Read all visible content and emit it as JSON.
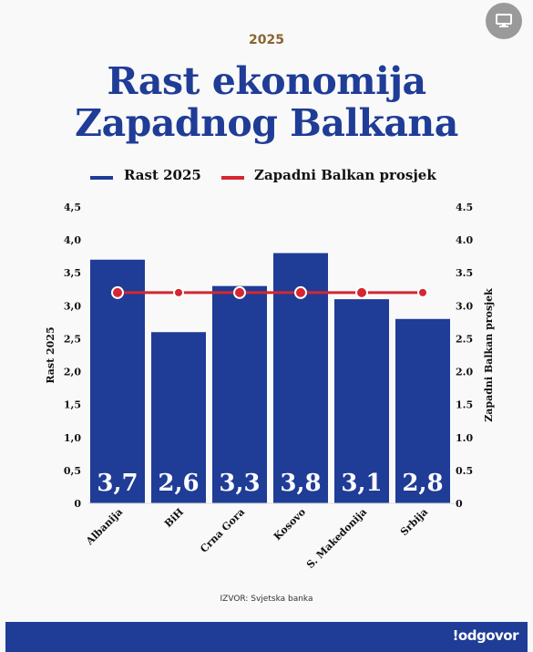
{
  "header": {
    "year": "2025",
    "title_line1": "Rast ekonomija",
    "title_line2": "Zapadnog Balkana"
  },
  "legend": {
    "bars_label": "Rast 2025",
    "line_label": "Zapadni Balkan prosjek"
  },
  "colors": {
    "bar": "#1f3c96",
    "line": "#d42731",
    "title": "#1f3c96",
    "year": "#8a6430"
  },
  "source": "IZVOR: Svjetska banka",
  "brand": "!odgovor",
  "icons": {
    "top_right": "monitor-icon"
  },
  "chart_data": {
    "type": "bar",
    "categories": [
      "Albanija",
      "BiH",
      "Crna Gora",
      "Kosovo",
      "S. Makedonija",
      "Srbija"
    ],
    "series": [
      {
        "name": "Rast 2025",
        "type": "bar",
        "values": [
          3.7,
          2.6,
          3.3,
          3.8,
          3.1,
          2.8
        ],
        "labels": [
          "3,7",
          "2,6",
          "3,3",
          "3,8",
          "3,1",
          "2,8"
        ]
      },
      {
        "name": "Zapadni Balkan prosjek",
        "type": "line",
        "values": [
          3.2,
          3.2,
          3.2,
          3.2,
          3.2,
          3.2
        ]
      }
    ],
    "ylabel_left": "Rast 2025",
    "ylabel_right": "Zapadni Balkan prosjek",
    "ylim": [
      0,
      4.5
    ],
    "yticks_left": [
      "0",
      "0,5",
      "1,0",
      "1,5",
      "2,0",
      "2,5",
      "3,0",
      "3,5",
      "4,0",
      "4,5"
    ],
    "yticks_right": [
      "0",
      "0.5",
      "1.0",
      "1.5",
      "2.0",
      "2.5",
      "3.0",
      "3.5",
      "4.0",
      "4.5"
    ],
    "grid": false,
    "legend_position": "top"
  }
}
